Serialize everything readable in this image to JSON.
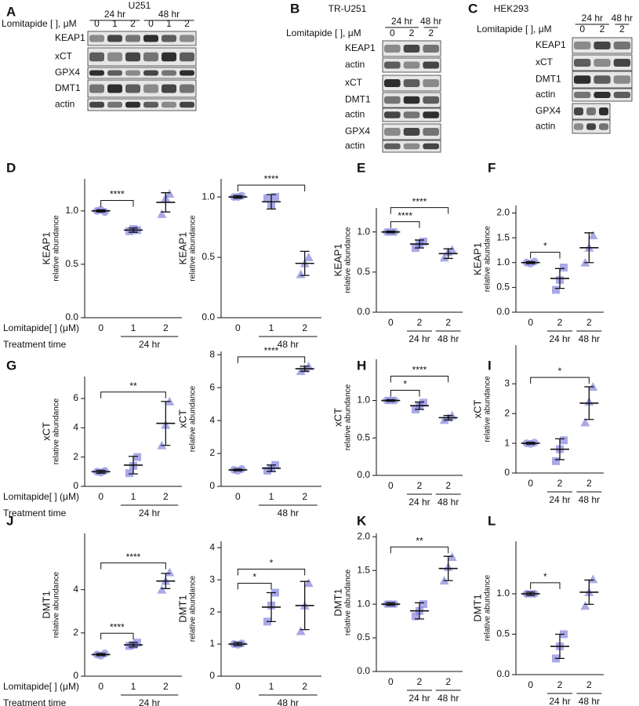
{
  "blots": [
    {
      "panel": "A",
      "cell_line": "U251",
      "dose_label": "Lomitapide [ ], μM",
      "times": [
        "24 hr",
        "48 hr"
      ],
      "doses": [
        "0",
        "1",
        "2",
        "0",
        "1",
        "2"
      ],
      "rows": [
        "KEAP1",
        "xCT",
        "GPX4",
        "DMT1",
        "actin"
      ]
    },
    {
      "panel": "B",
      "cell_line": "TR-U251",
      "dose_label": "Lomitapide [ ], μM",
      "times": [
        "24 hr",
        "48 hr"
      ],
      "doses": [
        "0",
        "2",
        "2"
      ],
      "rows": [
        "KEAP1",
        "actin",
        "xCT",
        "DMT1",
        "actin",
        "GPX4",
        "actin"
      ]
    },
    {
      "panel": "C",
      "cell_line": "HEK293",
      "dose_label": "Lomitapide [ ], μM",
      "times": [
        "24 hr",
        "48 hr"
      ],
      "doses": [
        "0",
        "2",
        "2"
      ],
      "rows": [
        "KEAP1",
        "xCT",
        "DMT1",
        "actin",
        "GPX4",
        "actin"
      ]
    }
  ],
  "chart_data": [
    {
      "type": "scatter",
      "panel": "D",
      "ylabel": "KEAP1",
      "ylabel_sub": "relative abundance",
      "xlabel": "Lomitapide[ ] (μM)",
      "time_label": "Treatment time",
      "color": "#7b7bdc",
      "categories": [
        "0",
        "1",
        "2"
      ],
      "times": [
        null,
        "24 hr",
        "24 hr"
      ],
      "ylim": [
        0,
        1.3
      ],
      "yticks": [
        {
          "value": 0,
          "label": "0.0"
        },
        0.5,
        {
          "value": 1,
          "label": "1.0"
        }
      ],
      "points": [
        [
          1.0,
          1.01,
          0.99
        ],
        [
          0.81,
          0.83,
          0.82
        ],
        [
          0.97,
          1.12,
          1.16
        ]
      ],
      "mean": [
        1.0,
        0.82,
        1.08
      ],
      "sd": [
        0.01,
        0.02,
        0.09
      ],
      "sig": [
        {
          "groups": [
            0,
            1
          ],
          "label": "****"
        }
      ]
    },
    {
      "type": "scatter",
      "ylabel": "KEAP1",
      "ylabel_sub": "relative abundance",
      "color": "#7b7bdc",
      "categories": [
        "0",
        "1",
        "2"
      ],
      "times": [
        null,
        "48 hr",
        "48 hr"
      ],
      "ylim": [
        0,
        1.15
      ],
      "yticks": [
        {
          "value": 0,
          "label": "0.0"
        },
        0.5,
        {
          "value": 1,
          "label": "1.0"
        }
      ],
      "points": [
        [
          1.0,
          1.0,
          1.01
        ],
        [
          0.99,
          0.93,
          1.0
        ],
        [
          0.36,
          0.45,
          0.5
        ]
      ],
      "mean": [
        1.0,
        0.96,
        0.45
      ],
      "sd": [
        0.01,
        0.06,
        0.1
      ],
      "sig": [
        {
          "groups": [
            0,
            2
          ],
          "label": "****"
        }
      ]
    },
    {
      "type": "scatter",
      "panel": "E",
      "ylabel": "KEAP1",
      "ylabel_sub": "relative abundance",
      "color": "#7b7bdc",
      "categories": [
        "0",
        "2",
        "2"
      ],
      "times": [
        null,
        "24 hr",
        "48 hr"
      ],
      "ylim": [
        0,
        1.3
      ],
      "yticks": [
        {
          "value": 0,
          "label": "0.0"
        },
        0.5,
        {
          "value": 1,
          "label": "1.0"
        }
      ],
      "points": [
        [
          1.0,
          1.0,
          1.0
        ],
        [
          0.8,
          0.85,
          0.88
        ],
        [
          0.68,
          0.75,
          0.78
        ]
      ],
      "mean": [
        1.0,
        0.85,
        0.73
      ],
      "sd": [
        0.01,
        0.05,
        0.06
      ],
      "sig": [
        {
          "groups": [
            0,
            1
          ],
          "label": "****"
        },
        {
          "groups": [
            0,
            2
          ],
          "label": "****"
        }
      ]
    },
    {
      "type": "scatter",
      "panel": "F",
      "ylabel": "KEAP1",
      "ylabel_sub": "relative abundance",
      "color": "#7b7bdc",
      "categories": [
        "0",
        "2",
        "2"
      ],
      "times": [
        null,
        "24 hr",
        "48 hr"
      ],
      "ylim": [
        0,
        2.15
      ],
      "yticks": [
        {
          "value": 0,
          "label": "0.0"
        },
        0.5,
        {
          "value": 1,
          "label": "1.0"
        },
        1.5,
        {
          "value": 2,
          "label": "2.0"
        }
      ],
      "points": [
        [
          1.0,
          0.98,
          1.02
        ],
        [
          0.45,
          0.65,
          0.9
        ],
        [
          1.0,
          1.3,
          1.55
        ]
      ],
      "mean": [
        1.0,
        0.68,
        1.3
      ],
      "sd": [
        0.02,
        0.2,
        0.3
      ],
      "sig": [
        {
          "groups": [
            0,
            1
          ],
          "label": "*"
        }
      ]
    },
    {
      "type": "scatter",
      "panel": "G",
      "ylabel": "xCT",
      "ylabel_sub": "relative abundance",
      "xlabel": "Lomitapide[ ] (μM)",
      "time_label": "Treatment time",
      "color": "#7b7bdc",
      "categories": [
        "0",
        "1",
        "2"
      ],
      "times": [
        null,
        "24 hr",
        "24 hr"
      ],
      "ylim": [
        0,
        7.5
      ],
      "yticks": [
        0,
        2,
        4,
        6
      ],
      "points": [
        [
          1.0,
          0.95,
          1.05
        ],
        [
          0.9,
          1.4,
          2.0
        ],
        [
          2.8,
          4.2,
          5.8
        ]
      ],
      "mean": [
        1.0,
        1.45,
        4.3
      ],
      "sd": [
        0.1,
        0.6,
        1.5
      ],
      "sig": [
        {
          "groups": [
            0,
            2
          ],
          "label": "**"
        }
      ]
    },
    {
      "type": "scatter",
      "ylabel": "xCT",
      "ylabel_sub": "relative abundance",
      "color": "#7b7bdc",
      "categories": [
        "0",
        "1",
        "2"
      ],
      "times": [
        null,
        "48 hr",
        "48 hr"
      ],
      "ylim": [
        0,
        8.2
      ],
      "yticks": [
        0,
        2,
        4,
        6,
        8
      ],
      "points": [
        [
          1.0,
          0.95,
          1.05
        ],
        [
          0.95,
          1.1,
          1.3
        ],
        [
          7.0,
          7.15,
          7.3
        ]
      ],
      "mean": [
        1.0,
        1.1,
        7.15
      ],
      "sd": [
        0.05,
        0.2,
        0.15
      ],
      "sig": [
        {
          "groups": [
            0,
            2
          ],
          "label": "****"
        }
      ]
    },
    {
      "type": "scatter",
      "panel": "H",
      "ylabel": "xCT",
      "ylabel_sub": "relative abundance",
      "color": "#7b7bdc",
      "categories": [
        "0",
        "2",
        "2"
      ],
      "times": [
        null,
        "24 hr",
        "48 hr"
      ],
      "ylim": [
        0,
        1.55
      ],
      "yticks": [
        {
          "value": 0,
          "label": "0.0"
        },
        0.5,
        {
          "value": 1,
          "label": "1.0"
        }
      ],
      "points": [
        [
          1.0,
          1.0,
          1.0
        ],
        [
          0.88,
          0.93,
          0.97
        ],
        [
          0.74,
          0.77,
          0.8
        ]
      ],
      "mean": [
        1.0,
        0.93,
        0.77
      ],
      "sd": [
        0.01,
        0.05,
        0.03
      ],
      "sig": [
        {
          "groups": [
            0,
            1
          ],
          "label": "*"
        },
        {
          "groups": [
            0,
            2
          ],
          "label": "****"
        }
      ]
    },
    {
      "type": "scatter",
      "panel": "I",
      "ylabel": "xCT",
      "ylabel_sub": "relative abundance",
      "color": "#7b7bdc",
      "categories": [
        "0",
        "2",
        "2"
      ],
      "times": [
        null,
        "24 hr",
        "48 hr"
      ],
      "ylim": [
        0,
        4.3
      ],
      "yticks": [
        0,
        1,
        2,
        3
      ],
      "points": [
        [
          1.0,
          0.98,
          1.02
        ],
        [
          0.4,
          0.8,
          1.1
        ],
        [
          1.7,
          2.4,
          2.9
        ]
      ],
      "mean": [
        1.0,
        0.8,
        2.35
      ],
      "sd": [
        0.03,
        0.35,
        0.55
      ],
      "sig": [
        {
          "groups": [
            0,
            2
          ],
          "label": "*"
        }
      ]
    },
    {
      "type": "scatter",
      "panel": "J",
      "ylabel": "DMT1",
      "ylabel_sub": "relative abundance",
      "xlabel": "Lomitapide[ ] (μM)",
      "time_label": "Treatment time",
      "color": "#7b7bdc",
      "categories": [
        "0",
        "1",
        "2"
      ],
      "times": [
        null,
        "24 hr",
        "24 hr"
      ],
      "ylim": [
        0,
        6.6
      ],
      "yticks": [
        0,
        2,
        4
      ],
      "points": [
        [
          1.0,
          0.95,
          1.05
        ],
        [
          1.4,
          1.45,
          1.55
        ],
        [
          4.0,
          4.4,
          4.8
        ]
      ],
      "mean": [
        1.0,
        1.45,
        4.4
      ],
      "sd": [
        0.05,
        0.1,
        0.35
      ],
      "sig": [
        {
          "groups": [
            0,
            1
          ],
          "label": "****"
        },
        {
          "groups": [
            0,
            2
          ],
          "label": "****"
        }
      ]
    },
    {
      "type": "scatter",
      "ylabel": "DMT1",
      "ylabel_sub": "relative abundance",
      "color": "#7b7bdc",
      "categories": [
        "0",
        "1",
        "2"
      ],
      "times": [
        null,
        "48 hr",
        "48 hr"
      ],
      "ylim": [
        0,
        4.2
      ],
      "yticks": [
        0,
        1,
        2,
        3,
        4
      ],
      "points": [
        [
          1.0,
          0.98,
          1.02
        ],
        [
          1.7,
          2.2,
          2.6
        ],
        [
          1.4,
          2.2,
          2.9
        ]
      ],
      "mean": [
        1.0,
        2.15,
        2.2
      ],
      "sd": [
        0.05,
        0.45,
        0.75
      ],
      "sig": [
        {
          "groups": [
            0,
            1
          ],
          "label": "*"
        },
        {
          "groups": [
            0,
            2
          ],
          "label": "*"
        }
      ]
    },
    {
      "type": "scatter",
      "panel": "K",
      "ylabel": "DMT1",
      "ylabel_sub": "relative abundance",
      "color": "#7b7bdc",
      "categories": [
        "0",
        "2",
        "2"
      ],
      "times": [
        null,
        "24 hr",
        "48 hr"
      ],
      "ylim": [
        0,
        2.05
      ],
      "yticks": [
        {
          "value": 0,
          "label": "0.0"
        },
        0.5,
        {
          "value": 1,
          "label": "1.0"
        },
        1.5,
        {
          "value": 2,
          "label": "2.0"
        }
      ],
      "points": [
        [
          1.0,
          1.0,
          1.0
        ],
        [
          0.82,
          0.9,
          1.0
        ],
        [
          1.35,
          1.55,
          1.7
        ]
      ],
      "mean": [
        1.0,
        0.9,
        1.53
      ],
      "sd": [
        0.02,
        0.12,
        0.18
      ],
      "sig": [
        {
          "groups": [
            0,
            2
          ],
          "label": "**"
        }
      ]
    },
    {
      "type": "scatter",
      "panel": "L",
      "ylabel": "DMT1",
      "ylabel_sub": "relative abundance",
      "color": "#7b7bdc",
      "categories": [
        "0",
        "2",
        "2"
      ],
      "times": [
        null,
        "24 hr",
        "48 hr"
      ],
      "ylim": [
        0,
        1.65
      ],
      "yticks": [
        {
          "value": 0,
          "label": "0.0"
        },
        0.5,
        {
          "value": 1,
          "label": "1.0"
        }
      ],
      "points": [
        [
          1.0,
          1.0,
          1.0
        ],
        [
          0.2,
          0.35,
          0.5
        ],
        [
          0.85,
          1.02,
          1.18
        ]
      ],
      "mean": [
        1.0,
        0.35,
        1.02
      ],
      "sd": [
        0.02,
        0.15,
        0.15
      ],
      "sig": [
        {
          "groups": [
            0,
            1
          ],
          "label": "*"
        }
      ]
    }
  ]
}
